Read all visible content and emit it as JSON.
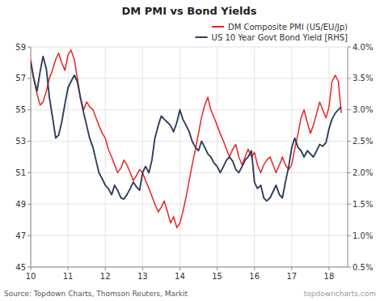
{
  "chart_data": {
    "type": "line",
    "title": "DM PMI vs Bond Yields",
    "x": [
      10.0,
      10.08,
      10.17,
      10.25,
      10.33,
      10.42,
      10.5,
      10.58,
      10.67,
      10.75,
      10.83,
      10.92,
      11.0,
      11.08,
      11.17,
      11.25,
      11.33,
      11.42,
      11.5,
      11.58,
      11.67,
      11.75,
      11.83,
      11.92,
      12.0,
      12.08,
      12.17,
      12.25,
      12.33,
      12.42,
      12.5,
      12.58,
      12.67,
      12.75,
      12.83,
      12.92,
      13.0,
      13.08,
      13.17,
      13.25,
      13.33,
      13.42,
      13.5,
      13.58,
      13.67,
      13.75,
      13.83,
      13.92,
      14.0,
      14.08,
      14.17,
      14.25,
      14.33,
      14.42,
      14.5,
      14.58,
      14.67,
      14.75,
      14.83,
      14.92,
      15.0,
      15.08,
      15.17,
      15.25,
      15.33,
      15.42,
      15.5,
      15.58,
      15.67,
      15.75,
      15.83,
      15.92,
      16.0,
      16.08,
      16.17,
      16.25,
      16.33,
      16.42,
      16.5,
      16.58,
      16.67,
      16.75,
      16.83,
      16.92,
      17.0,
      17.08,
      17.17,
      17.25,
      17.33,
      17.42,
      17.5,
      17.58,
      17.67,
      17.75,
      17.83,
      17.92,
      18.0,
      18.08,
      18.17,
      18.25,
      18.33
    ],
    "series": [
      {
        "name": "DM Composite PMI (US/EU/Jp)",
        "color": "#e8251f",
        "values": [
          58.2,
          57.0,
          56.0,
          55.3,
          55.5,
          56.2,
          57.0,
          57.5,
          58.2,
          58.6,
          58.0,
          57.5,
          58.5,
          58.8,
          58.2,
          57.0,
          55.8,
          55.0,
          55.5,
          55.2,
          55.0,
          54.5,
          54.0,
          53.5,
          53.2,
          52.5,
          52.0,
          51.5,
          51.0,
          51.3,
          51.8,
          51.5,
          51.0,
          50.5,
          50.8,
          51.2,
          51.0,
          50.5,
          50.0,
          49.5,
          49.0,
          48.5,
          48.8,
          49.2,
          48.5,
          47.8,
          48.2,
          47.5,
          47.8,
          48.5,
          49.5,
          50.5,
          51.5,
          52.5,
          53.5,
          54.5,
          55.3,
          55.8,
          55.0,
          54.5,
          54.0,
          53.5,
          53.0,
          52.5,
          52.0,
          52.5,
          52.8,
          52.0,
          51.5,
          52.0,
          52.5,
          52.0,
          52.3,
          51.5,
          51.0,
          51.5,
          51.8,
          52.0,
          51.5,
          51.0,
          51.5,
          52.0,
          51.5,
          51.2,
          51.5,
          52.5,
          53.5,
          54.5,
          55.0,
          54.2,
          53.5,
          54.0,
          54.8,
          55.5,
          55.0,
          54.5,
          55.2,
          56.8,
          57.2,
          56.8,
          54.8
        ]
      },
      {
        "name": "US 10 Year Govt Bond Yield [RHS]",
        "color": "#2e3f5c",
        "axis": "y2",
        "values": [
          3.75,
          3.5,
          3.3,
          3.6,
          3.85,
          3.65,
          3.2,
          2.9,
          2.55,
          2.6,
          2.8,
          3.1,
          3.35,
          3.45,
          3.55,
          3.45,
          3.2,
          2.95,
          2.75,
          2.55,
          2.4,
          2.2,
          2.0,
          1.9,
          1.8,
          1.75,
          1.65,
          1.8,
          1.72,
          1.6,
          1.58,
          1.65,
          1.75,
          1.85,
          1.78,
          1.72,
          2.0,
          2.1,
          2.0,
          2.2,
          2.55,
          2.75,
          2.9,
          2.85,
          2.8,
          2.75,
          2.65,
          2.8,
          3.0,
          2.85,
          2.75,
          2.65,
          2.5,
          2.4,
          2.35,
          2.5,
          2.4,
          2.3,
          2.25,
          2.15,
          2.1,
          2.0,
          2.1,
          2.2,
          2.25,
          2.18,
          2.05,
          2.0,
          2.1,
          2.2,
          2.25,
          2.35,
          1.85,
          1.75,
          1.8,
          1.6,
          1.55,
          1.6,
          1.7,
          1.8,
          1.65,
          1.6,
          1.85,
          2.1,
          2.4,
          2.55,
          2.4,
          2.35,
          2.25,
          2.35,
          2.3,
          2.25,
          2.35,
          2.45,
          2.42,
          2.48,
          2.7,
          2.85,
          2.95,
          3.0,
          3.05
        ]
      }
    ],
    "xlim": [
      10,
      18.5
    ],
    "xticks": [
      10,
      11,
      12,
      13,
      14,
      15,
      16,
      17,
      18
    ],
    "ylim": [
      45,
      59
    ],
    "yticks": [
      45,
      47,
      49,
      51,
      53,
      55,
      57,
      59
    ],
    "y2lim": [
      0.5,
      4.0
    ],
    "y2ticks": [
      {
        "value": 0.5,
        "label": "0.5%"
      },
      {
        "value": 1.0,
        "label": "1.0%"
      },
      {
        "value": 1.5,
        "label": "1.5%"
      },
      {
        "value": 2.0,
        "label": "2.0%"
      },
      {
        "value": 2.5,
        "label": "2.5%"
      },
      {
        "value": 3.0,
        "label": "3.0%"
      },
      {
        "value": 3.5,
        "label": "3.5%"
      },
      {
        "value": 4.0,
        "label": "4.0%"
      }
    ],
    "grid": true,
    "legend": "upper right",
    "annotations": [
      "Source: Topdown Charts, Thomson Reuters, Markit",
      "topdowncharts.com"
    ]
  }
}
